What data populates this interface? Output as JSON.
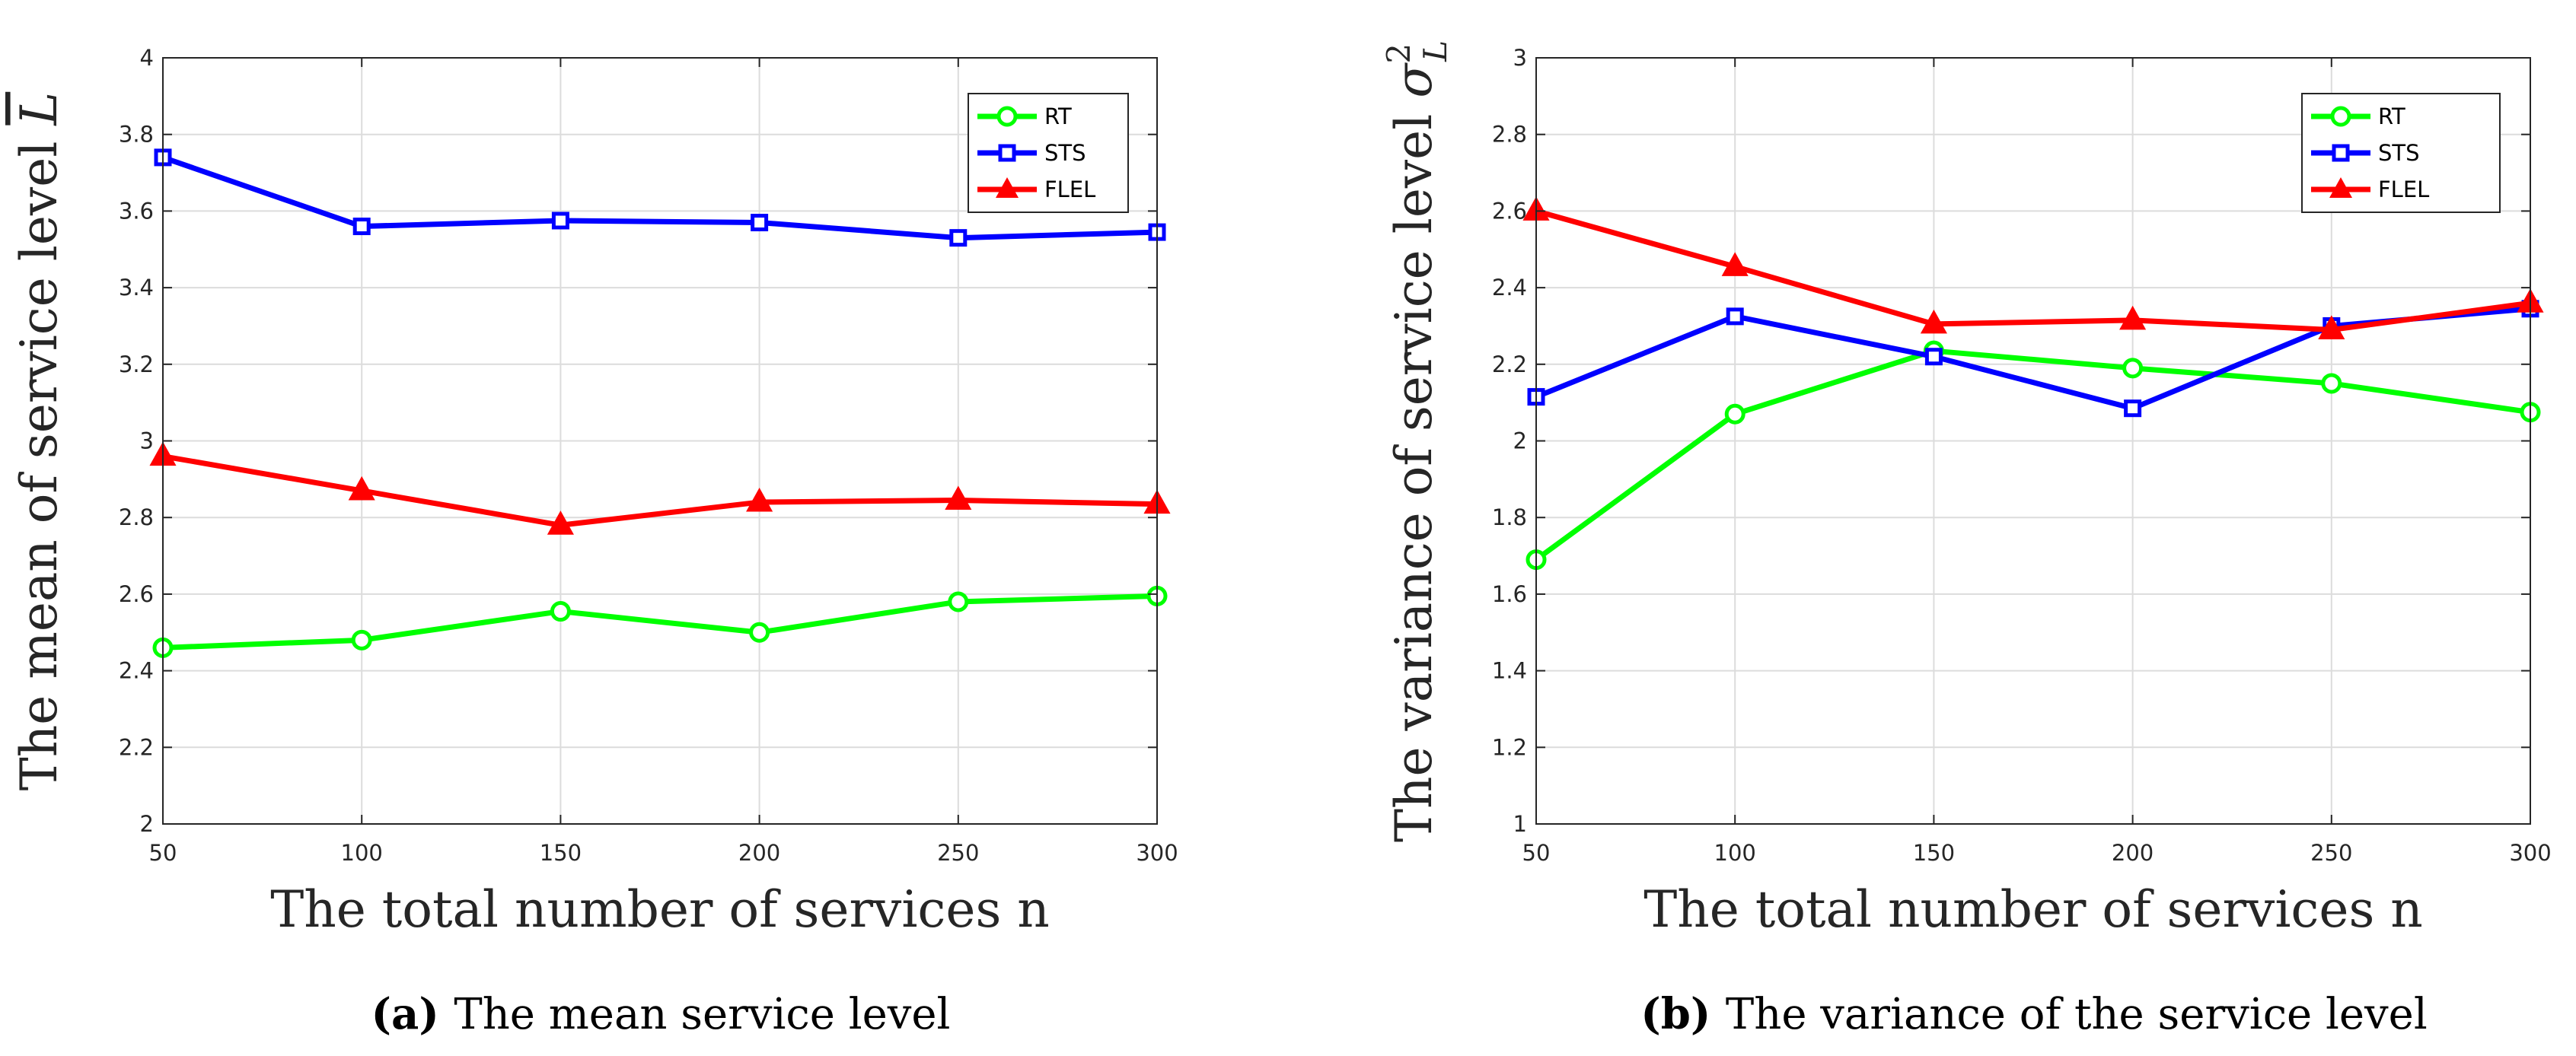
{
  "chart_data": [
    {
      "type": "line",
      "panel": "a",
      "caption_letter": "a",
      "caption_text": "The mean service level",
      "xlabel": "The total number of services n",
      "ylabel_text": "The mean of service level ",
      "ylabel_symbol": "L",
      "ylabel_symbol_note": "L with overline",
      "x": [
        50,
        100,
        150,
        200,
        250,
        300
      ],
      "xlim": [
        50,
        300
      ],
      "ylim": [
        2,
        4
      ],
      "xticks": [
        "50",
        "100",
        "150",
        "200",
        "250",
        "300"
      ],
      "yticks": [
        "2",
        "2.2",
        "2.4",
        "2.6",
        "2.8",
        "3",
        "3.2",
        "3.4",
        "3.6",
        "3.8",
        "4"
      ],
      "grid": true,
      "legend_position": "top-right",
      "series": [
        {
          "name": "RT",
          "color": "#00ff00",
          "marker": "circle",
          "values": [
            2.46,
            2.48,
            2.555,
            2.5,
            2.58,
            2.595
          ]
        },
        {
          "name": "STS",
          "color": "#0000ff",
          "marker": "square",
          "values": [
            3.74,
            3.56,
            3.575,
            3.57,
            3.53,
            3.545
          ]
        },
        {
          "name": "FLEL",
          "color": "#ff0000",
          "marker": "triangle",
          "values": [
            2.96,
            2.87,
            2.78,
            2.84,
            2.845,
            2.835
          ]
        }
      ]
    },
    {
      "type": "line",
      "panel": "b",
      "caption_letter": "b",
      "caption_text": "The variance of the service level",
      "xlabel": "The total number of services n",
      "ylabel_text": "The variance of service level ",
      "ylabel_symbol": "σ",
      "ylabel_sub": "L",
      "ylabel_sup": "2",
      "x": [
        50,
        100,
        150,
        200,
        250,
        300
      ],
      "xlim": [
        50,
        300
      ],
      "ylim": [
        1,
        3
      ],
      "xticks": [
        "50",
        "100",
        "150",
        "200",
        "250",
        "300"
      ],
      "yticks": [
        "1",
        "1.2",
        "1.4",
        "1.6",
        "1.8",
        "2",
        "2.2",
        "2.4",
        "2.6",
        "2.8",
        "3"
      ],
      "grid": true,
      "legend_position": "top-right",
      "series": [
        {
          "name": "RT",
          "color": "#00ff00",
          "marker": "circle",
          "values": [
            1.69,
            2.07,
            2.235,
            2.19,
            2.15,
            2.075
          ]
        },
        {
          "name": "STS",
          "color": "#0000ff",
          "marker": "square",
          "values": [
            2.115,
            2.325,
            2.22,
            2.085,
            2.3,
            2.345
          ]
        },
        {
          "name": "FLEL",
          "color": "#ff0000",
          "marker": "triangle",
          "values": [
            2.6,
            2.455,
            2.305,
            2.315,
            2.29,
            2.36
          ]
        }
      ]
    }
  ]
}
